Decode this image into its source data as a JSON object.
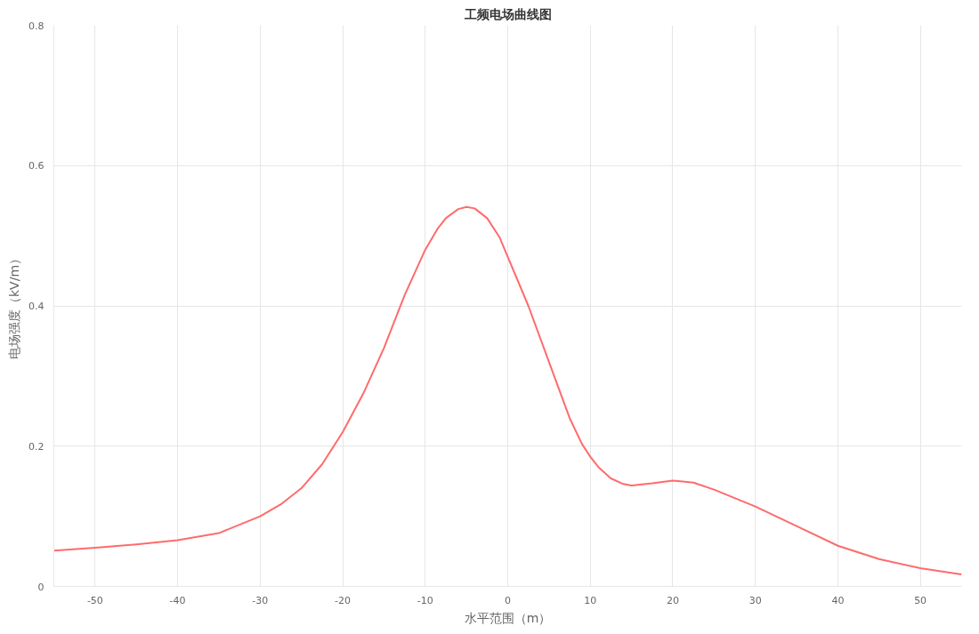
{
  "chart_data": {
    "type": "line",
    "title": "工频电场曲线图",
    "xlabel": "水平范围（m）",
    "ylabel": "电场强度（kV/m）",
    "x": [
      -55,
      -50,
      -45,
      -40,
      -35,
      -30,
      -27.5,
      -25,
      -22.5,
      -20,
      -17.5,
      -15,
      -12.5,
      -10,
      -8.5,
      -7.5,
      -6,
      -5,
      -4,
      -2.5,
      -1,
      0,
      2.5,
      5,
      7.5,
      9,
      10,
      11,
      12.5,
      14,
      15,
      17.5,
      20,
      22.5,
      25,
      27.5,
      30,
      35,
      40,
      45,
      50,
      55
    ],
    "series": [
      {
        "color": "#ff6b6b",
        "values": [
          0.051,
          0.055,
          0.06,
          0.066,
          0.076,
          0.1,
          0.117,
          0.14,
          0.174,
          0.22,
          0.275,
          0.34,
          0.415,
          0.48,
          0.51,
          0.525,
          0.538,
          0.541,
          0.539,
          0.525,
          0.498,
          0.47,
          0.4,
          0.32,
          0.24,
          0.203,
          0.185,
          0.17,
          0.154,
          0.146,
          0.144,
          0.147,
          0.151,
          0.148,
          0.138,
          0.126,
          0.114,
          0.086,
          0.058,
          0.039,
          0.026,
          0.017
        ]
      }
    ],
    "xlim": [
      -55,
      55
    ],
    "ylim": [
      0,
      0.8
    ],
    "xticks": [
      -50,
      -40,
      -30,
      -20,
      -10,
      0,
      10,
      20,
      30,
      40,
      50
    ],
    "yticks": [
      0,
      0.2,
      0.4,
      0.6,
      0.8
    ],
    "grid": true,
    "marker": "none",
    "line_style": "solid"
  }
}
